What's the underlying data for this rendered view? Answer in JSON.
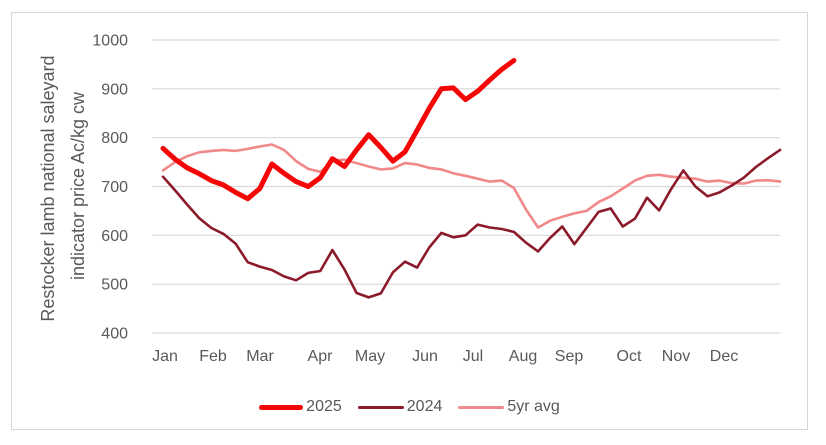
{
  "chart_data": {
    "type": "line",
    "title": "",
    "ylabel_line1": "Restocker lamb national saleyard",
    "ylabel_line2": "indicator price Ac/kg cw",
    "ylabel": "Restocker lamb national saleyard indicator price Ac/kg cw",
    "xlabel": "",
    "ylim": [
      400,
      1000
    ],
    "yticks": [
      1000,
      900,
      800,
      700,
      600,
      500,
      400
    ],
    "categories": [
      "Jan",
      "Feb",
      "Mar",
      "Apr",
      "May",
      "Jun",
      "Jul",
      "Aug",
      "Sep",
      "Oct",
      "Nov",
      "Dec"
    ],
    "x_unit": "week",
    "grid": "horizontal",
    "legend_position": "bottom",
    "colors": {
      "grid": "#d9d9d9",
      "text": "#595959",
      "frame": "#d6d6d6"
    },
    "series": [
      {
        "name": "2025",
        "color": "#f40606",
        "stroke_width": 5,
        "values": [
          778,
          756,
          738,
          726,
          712,
          703,
          688,
          675,
          696,
          746,
          727,
          710,
          700,
          718,
          757,
          741,
          775,
          806,
          780,
          752,
          771,
          815,
          860,
          900,
          902,
          878,
          895,
          918,
          940,
          958
        ]
      },
      {
        "name": "2024",
        "color": "#8b1a2b",
        "stroke_width": 2.6,
        "values": [
          720,
          692,
          663,
          635,
          615,
          603,
          583,
          545,
          536,
          529,
          516,
          508,
          523,
          527,
          570,
          530,
          482,
          473,
          481,
          524,
          546,
          534,
          575,
          605,
          596,
          600,
          622,
          616,
          613,
          607,
          585,
          567,
          595,
          618,
          582,
          615,
          648,
          655,
          618,
          634,
          677,
          651,
          695,
          733,
          700,
          680,
          688,
          702,
          718,
          740,
          758,
          775
        ]
      },
      {
        "name": "5yr avg",
        "color": "#f18889",
        "stroke_width": 2.6,
        "values": [
          733,
          750,
          762,
          770,
          773,
          775,
          773,
          777,
          782,
          786,
          775,
          752,
          736,
          730,
          752,
          755,
          748,
          741,
          735,
          737,
          748,
          745,
          738,
          735,
          727,
          722,
          716,
          710,
          712,
          697,
          653,
          616,
          630,
          638,
          645,
          650,
          668,
          680,
          696,
          712,
          722,
          724,
          720,
          718,
          716,
          710,
          712,
          707,
          706,
          712,
          713,
          710
        ]
      }
    ]
  }
}
